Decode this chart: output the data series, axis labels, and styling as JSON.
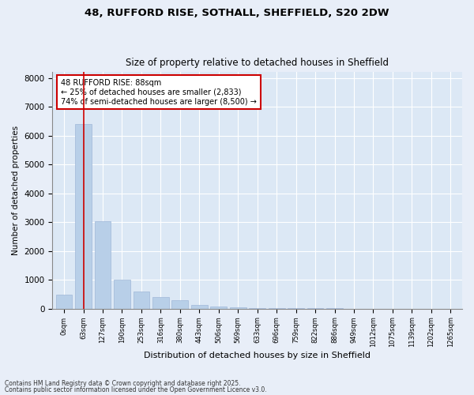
{
  "title1": "48, RUFFORD RISE, SOTHALL, SHEFFIELD, S20 2DW",
  "title2": "Size of property relative to detached houses in Sheffield",
  "xlabel": "Distribution of detached houses by size in Sheffield",
  "ylabel": "Number of detached properties",
  "bar_color": "#b8cfe8",
  "bar_edgecolor": "#a0b8d8",
  "fig_bg_color": "#e8eef8",
  "plot_bg_color": "#dce8f5",
  "categories": [
    "0sqm",
    "63sqm",
    "127sqm",
    "190sqm",
    "253sqm",
    "316sqm",
    "380sqm",
    "443sqm",
    "506sqm",
    "569sqm",
    "633sqm",
    "696sqm",
    "759sqm",
    "822sqm",
    "886sqm",
    "949sqm",
    "1012sqm",
    "1075sqm",
    "1139sqm",
    "1202sqm",
    "1265sqm"
  ],
  "values": [
    480,
    6400,
    3020,
    1000,
    600,
    390,
    280,
    130,
    80,
    50,
    30,
    20,
    15,
    10,
    8,
    6,
    5,
    4,
    3,
    2,
    1
  ],
  "ylim": [
    0,
    8200
  ],
  "yticks": [
    0,
    1000,
    2000,
    3000,
    4000,
    5000,
    6000,
    7000,
    8000
  ],
  "property_line_x": 1.0,
  "property_line_color": "#cc0000",
  "annotation_text": "48 RUFFORD RISE: 88sqm\n← 25% of detached houses are smaller (2,833)\n74% of semi-detached houses are larger (8,500) →",
  "annotation_box_edgecolor": "#cc0000",
  "footnote1": "Contains HM Land Registry data © Crown copyright and database right 2025.",
  "footnote2": "Contains public sector information licensed under the Open Government Licence v3.0."
}
